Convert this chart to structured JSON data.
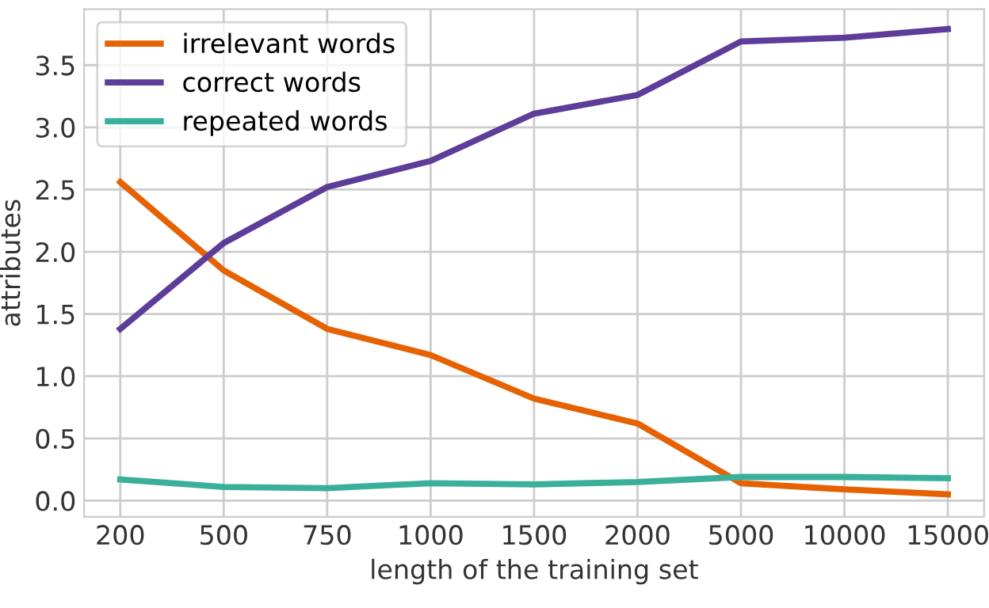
{
  "chart_data": {
    "type": "line",
    "xlabel": "length of the training set",
    "ylabel": "attributes",
    "categories": [
      "200",
      "500",
      "750",
      "1000",
      "1500",
      "2000",
      "5000",
      "10000",
      "15000"
    ],
    "series": [
      {
        "name": "irrelevant words",
        "color": "#e66101",
        "values": [
          2.56,
          1.85,
          1.38,
          1.17,
          0.82,
          0.62,
          0.14,
          0.09,
          0.05
        ]
      },
      {
        "name": "correct words",
        "color": "#5e3c99",
        "values": [
          1.38,
          2.07,
          2.52,
          2.73,
          3.11,
          3.26,
          3.69,
          3.72,
          3.79
        ]
      },
      {
        "name": "repeated words",
        "color": "#3aaf9a",
        "values": [
          0.17,
          0.11,
          0.1,
          0.14,
          0.13,
          0.15,
          0.19,
          0.19,
          0.18
        ]
      }
    ],
    "ylim": [
      -0.13,
      3.95
    ],
    "yticks": [
      {
        "value": 0,
        "label": "0.0"
      },
      0.5,
      {
        "value": 1,
        "label": "1.0"
      },
      1.5,
      {
        "value": 2,
        "label": "2.0"
      },
      2.5,
      {
        "value": 3,
        "label": "3.0"
      },
      3.5
    ],
    "grid": true,
    "legend": "top left"
  }
}
